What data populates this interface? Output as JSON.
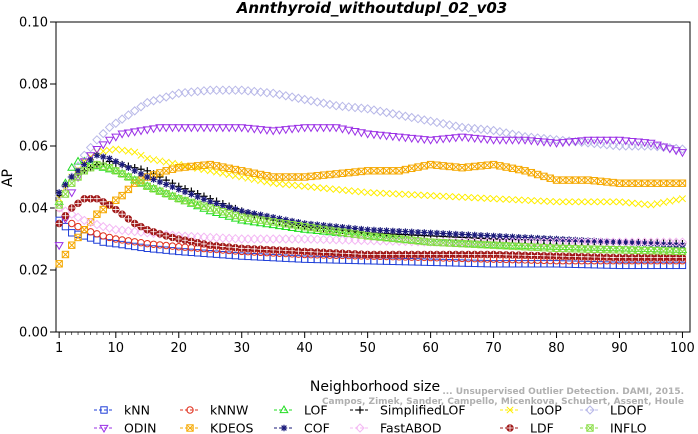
{
  "chart_data": {
    "type": "line",
    "title": "Annthyroid_withoutdupl_02_v03",
    "xlabel": "Neighborhood size",
    "ylabel": "AP",
    "xlim": [
      1,
      100
    ],
    "ylim": [
      0.0,
      0.1
    ],
    "x_ticks": [
      1,
      10,
      20,
      30,
      40,
      50,
      60,
      70,
      80,
      90,
      100
    ],
    "y_ticks": [
      "0.00",
      "0.02",
      "0.04",
      "0.06",
      "0.08",
      "0.10"
    ],
    "grid": false,
    "legend_position": "bottom",
    "attribution": [
      "... Unsupervised Outlier Detection. DAMI, 2015.",
      "Campos, Zimek, Sander, Campello, Micenkova, Schubert, Assent, Houle"
    ],
    "series": [
      {
        "name": "kNN",
        "color": "#1f3fd8",
        "marker": "square",
        "points": [
          [
            1,
            0.036
          ],
          [
            2,
            0.034
          ],
          [
            3,
            0.032
          ],
          [
            5,
            0.031
          ],
          [
            8,
            0.029
          ],
          [
            10,
            0.0285
          ],
          [
            15,
            0.027
          ],
          [
            20,
            0.026
          ],
          [
            30,
            0.0245
          ],
          [
            40,
            0.0235
          ],
          [
            50,
            0.023
          ],
          [
            60,
            0.0225
          ],
          [
            70,
            0.022
          ],
          [
            80,
            0.022
          ],
          [
            90,
            0.0215
          ],
          [
            100,
            0.0215
          ]
        ]
      },
      {
        "name": "kNNW",
        "color": "#e0301e",
        "marker": "circle",
        "points": [
          [
            1,
            0.04
          ],
          [
            2,
            0.037
          ],
          [
            3,
            0.035
          ],
          [
            5,
            0.033
          ],
          [
            8,
            0.031
          ],
          [
            10,
            0.03
          ],
          [
            15,
            0.0285
          ],
          [
            20,
            0.0275
          ],
          [
            30,
            0.026
          ],
          [
            40,
            0.025
          ],
          [
            50,
            0.0245
          ],
          [
            60,
            0.024
          ],
          [
            70,
            0.0235
          ],
          [
            80,
            0.023
          ],
          [
            90,
            0.023
          ],
          [
            100,
            0.023
          ]
        ]
      },
      {
        "name": "LOF",
        "color": "#22dd22",
        "marker": "triangle",
        "points": [
          [
            1,
            0.042
          ],
          [
            2,
            0.048
          ],
          [
            3,
            0.053
          ],
          [
            4,
            0.055
          ],
          [
            5,
            0.055
          ],
          [
            6,
            0.054
          ],
          [
            8,
            0.053
          ],
          [
            10,
            0.052
          ],
          [
            12,
            0.05
          ],
          [
            15,
            0.047
          ],
          [
            20,
            0.043
          ],
          [
            25,
            0.039
          ],
          [
            30,
            0.036
          ],
          [
            40,
            0.033
          ],
          [
            50,
            0.031
          ],
          [
            60,
            0.029
          ],
          [
            70,
            0.028
          ],
          [
            80,
            0.0275
          ],
          [
            90,
            0.027
          ],
          [
            100,
            0.0265
          ]
        ]
      },
      {
        "name": "SimplifiedLOF",
        "color": "#000000",
        "marker": "plus",
        "points": [
          [
            1,
            0.044
          ],
          [
            2,
            0.047
          ],
          [
            3,
            0.05
          ],
          [
            5,
            0.052
          ],
          [
            7,
            0.054
          ],
          [
            9,
            0.055
          ],
          [
            11,
            0.054
          ],
          [
            13,
            0.053
          ],
          [
            15,
            0.052
          ],
          [
            18,
            0.049
          ],
          [
            20,
            0.047
          ],
          [
            25,
            0.043
          ],
          [
            30,
            0.039
          ],
          [
            35,
            0.036
          ],
          [
            40,
            0.034
          ],
          [
            50,
            0.032
          ],
          [
            60,
            0.031
          ],
          [
            70,
            0.03
          ],
          [
            80,
            0.0295
          ],
          [
            90,
            0.029
          ],
          [
            100,
            0.0285
          ]
        ]
      },
      {
        "name": "LoOP",
        "color": "#ffee00",
        "marker": "x",
        "points": [
          [
            1,
            0.043
          ],
          [
            3,
            0.05
          ],
          [
            5,
            0.055
          ],
          [
            7,
            0.058
          ],
          [
            10,
            0.059
          ],
          [
            13,
            0.058
          ],
          [
            15,
            0.056
          ],
          [
            20,
            0.054
          ],
          [
            25,
            0.052
          ],
          [
            30,
            0.05
          ],
          [
            35,
            0.048
          ],
          [
            40,
            0.047
          ],
          [
            50,
            0.045
          ],
          [
            60,
            0.044
          ],
          [
            70,
            0.043
          ],
          [
            80,
            0.042
          ],
          [
            90,
            0.042
          ],
          [
            95,
            0.041
          ],
          [
            100,
            0.043
          ]
        ]
      },
      {
        "name": "LDOF",
        "color": "#b8b8e8",
        "marker": "diamond",
        "points": [
          [
            1,
            0.044
          ],
          [
            3,
            0.05
          ],
          [
            5,
            0.057
          ],
          [
            7,
            0.062
          ],
          [
            9,
            0.066
          ],
          [
            12,
            0.07
          ],
          [
            15,
            0.074
          ],
          [
            20,
            0.077
          ],
          [
            25,
            0.078
          ],
          [
            30,
            0.078
          ],
          [
            35,
            0.077
          ],
          [
            40,
            0.075
          ],
          [
            45,
            0.073
          ],
          [
            50,
            0.072
          ],
          [
            55,
            0.07
          ],
          [
            60,
            0.068
          ],
          [
            65,
            0.066
          ],
          [
            70,
            0.065
          ],
          [
            75,
            0.063
          ],
          [
            80,
            0.062
          ],
          [
            85,
            0.061
          ],
          [
            90,
            0.06
          ],
          [
            95,
            0.06
          ],
          [
            100,
            0.059
          ]
        ]
      },
      {
        "name": "ODIN",
        "color": "#9b30e6",
        "marker": "triangle-down",
        "points": [
          [
            1,
            0.028
          ],
          [
            3,
            0.045
          ],
          [
            5,
            0.055
          ],
          [
            7,
            0.059
          ],
          [
            9,
            0.062
          ],
          [
            11,
            0.064
          ],
          [
            14,
            0.065
          ],
          [
            17,
            0.066
          ],
          [
            20,
            0.066
          ],
          [
            25,
            0.066
          ],
          [
            30,
            0.066
          ],
          [
            35,
            0.065
          ],
          [
            40,
            0.066
          ],
          [
            45,
            0.066
          ],
          [
            50,
            0.064
          ],
          [
            55,
            0.063
          ],
          [
            60,
            0.062
          ],
          [
            65,
            0.063
          ],
          [
            70,
            0.062
          ],
          [
            75,
            0.062
          ],
          [
            80,
            0.061
          ],
          [
            85,
            0.062
          ],
          [
            90,
            0.062
          ],
          [
            95,
            0.061
          ],
          [
            100,
            0.058
          ]
        ]
      },
      {
        "name": "KDEOS",
        "color": "#f5a800",
        "marker": "square-x",
        "points": [
          [
            1,
            0.022
          ],
          [
            3,
            0.028
          ],
          [
            5,
            0.033
          ],
          [
            7,
            0.038
          ],
          [
            9,
            0.041
          ],
          [
            11,
            0.044
          ],
          [
            13,
            0.048
          ],
          [
            15,
            0.05
          ],
          [
            18,
            0.052
          ],
          [
            20,
            0.053
          ],
          [
            25,
            0.054
          ],
          [
            30,
            0.052
          ],
          [
            35,
            0.05
          ],
          [
            40,
            0.05
          ],
          [
            45,
            0.051
          ],
          [
            50,
            0.052
          ],
          [
            55,
            0.052
          ],
          [
            60,
            0.054
          ],
          [
            65,
            0.053
          ],
          [
            70,
            0.054
          ],
          [
            75,
            0.052
          ],
          [
            80,
            0.049
          ],
          [
            85,
            0.049
          ],
          [
            90,
            0.048
          ],
          [
            95,
            0.048
          ],
          [
            100,
            0.048
          ]
        ]
      },
      {
        "name": "COF",
        "color": "#1a1a7a",
        "marker": "star",
        "points": [
          [
            1,
            0.045
          ],
          [
            3,
            0.05
          ],
          [
            5,
            0.054
          ],
          [
            7,
            0.057
          ],
          [
            9,
            0.056
          ],
          [
            11,
            0.054
          ],
          [
            13,
            0.052
          ],
          [
            15,
            0.05
          ],
          [
            20,
            0.046
          ],
          [
            25,
            0.042
          ],
          [
            30,
            0.039
          ],
          [
            35,
            0.037
          ],
          [
            40,
            0.035
          ],
          [
            50,
            0.033
          ],
          [
            60,
            0.032
          ],
          [
            70,
            0.031
          ],
          [
            80,
            0.03
          ],
          [
            90,
            0.029
          ],
          [
            100,
            0.028
          ]
        ]
      },
      {
        "name": "FastABOD",
        "color": "#f4b8f4",
        "marker": "diamond",
        "points": [
          [
            1,
            0.04
          ],
          [
            3,
            0.038
          ],
          [
            5,
            0.036
          ],
          [
            8,
            0.034
          ],
          [
            10,
            0.033
          ],
          [
            15,
            0.032
          ],
          [
            20,
            0.031
          ],
          [
            30,
            0.03
          ],
          [
            40,
            0.03
          ],
          [
            50,
            0.0295
          ],
          [
            60,
            0.029
          ],
          [
            70,
            0.029
          ],
          [
            80,
            0.029
          ],
          [
            90,
            0.029
          ],
          [
            100,
            0.029
          ]
        ]
      },
      {
        "name": "LDF",
        "color": "#a01818",
        "marker": "circle-plus",
        "points": [
          [
            1,
            0.035
          ],
          [
            3,
            0.04
          ],
          [
            5,
            0.043
          ],
          [
            7,
            0.043
          ],
          [
            9,
            0.041
          ],
          [
            11,
            0.038
          ],
          [
            13,
            0.035
          ],
          [
            15,
            0.033
          ],
          [
            18,
            0.031
          ],
          [
            20,
            0.03
          ],
          [
            25,
            0.028
          ],
          [
            30,
            0.027
          ],
          [
            40,
            0.026
          ],
          [
            50,
            0.025
          ],
          [
            60,
            0.025
          ],
          [
            70,
            0.025
          ],
          [
            80,
            0.0245
          ],
          [
            90,
            0.024
          ],
          [
            100,
            0.024
          ]
        ]
      },
      {
        "name": "INFLO",
        "color": "#88dd44",
        "marker": "square-x",
        "points": [
          [
            1,
            0.041
          ],
          [
            3,
            0.048
          ],
          [
            5,
            0.052
          ],
          [
            7,
            0.054
          ],
          [
            9,
            0.053
          ],
          [
            11,
            0.051
          ],
          [
            13,
            0.049
          ],
          [
            15,
            0.047
          ],
          [
            20,
            0.043
          ],
          [
            25,
            0.04
          ],
          [
            30,
            0.037
          ],
          [
            40,
            0.034
          ],
          [
            50,
            0.031
          ],
          [
            60,
            0.029
          ],
          [
            70,
            0.028
          ],
          [
            80,
            0.027
          ],
          [
            90,
            0.0265
          ],
          [
            100,
            0.026
          ]
        ]
      }
    ]
  }
}
